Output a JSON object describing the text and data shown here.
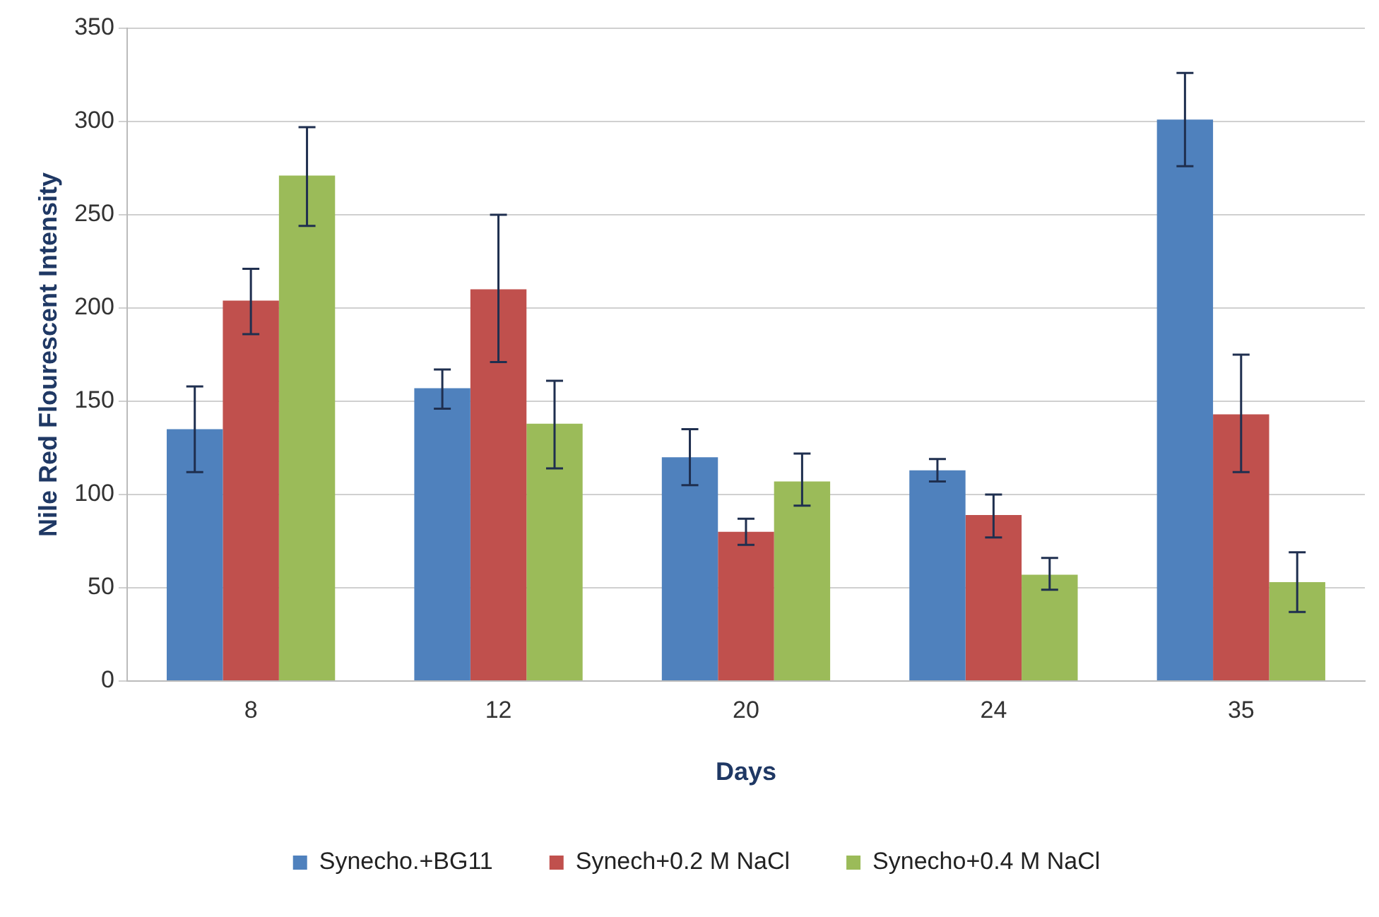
{
  "chart_data": {
    "type": "bar",
    "xlabel": "Days",
    "ylabel": "Nile Red Flourescent Intensity",
    "categories": [
      "8",
      "12",
      "20",
      "24",
      "35"
    ],
    "series": [
      {
        "name": "Synecho.+BG11",
        "color": "#4f81bd",
        "values": [
          135,
          157,
          120,
          113,
          301
        ],
        "errors": [
          [
            112,
            158
          ],
          [
            146,
            167
          ],
          [
            105,
            135
          ],
          [
            107,
            119
          ],
          [
            276,
            326
          ]
        ]
      },
      {
        "name": "Synech+0.2 M NaCl",
        "color": "#c0504d",
        "values": [
          204,
          210,
          80,
          89,
          143
        ],
        "errors": [
          [
            186,
            221
          ],
          [
            171,
            250
          ],
          [
            73,
            87
          ],
          [
            77,
            100
          ],
          [
            112,
            175
          ]
        ]
      },
      {
        "name": "Synecho+0.4 M NaCl",
        "color": "#9bbb59",
        "values": [
          271,
          138,
          107,
          57,
          53
        ],
        "errors": [
          [
            244,
            297
          ],
          [
            114,
            161
          ],
          [
            94,
            122
          ],
          [
            49,
            66
          ],
          [
            37,
            69
          ]
        ]
      }
    ],
    "ylim": [
      0,
      350
    ],
    "yticks": [
      0,
      50,
      100,
      150,
      200,
      250,
      300,
      350
    ],
    "grid": "y",
    "legend": "bottom"
  }
}
